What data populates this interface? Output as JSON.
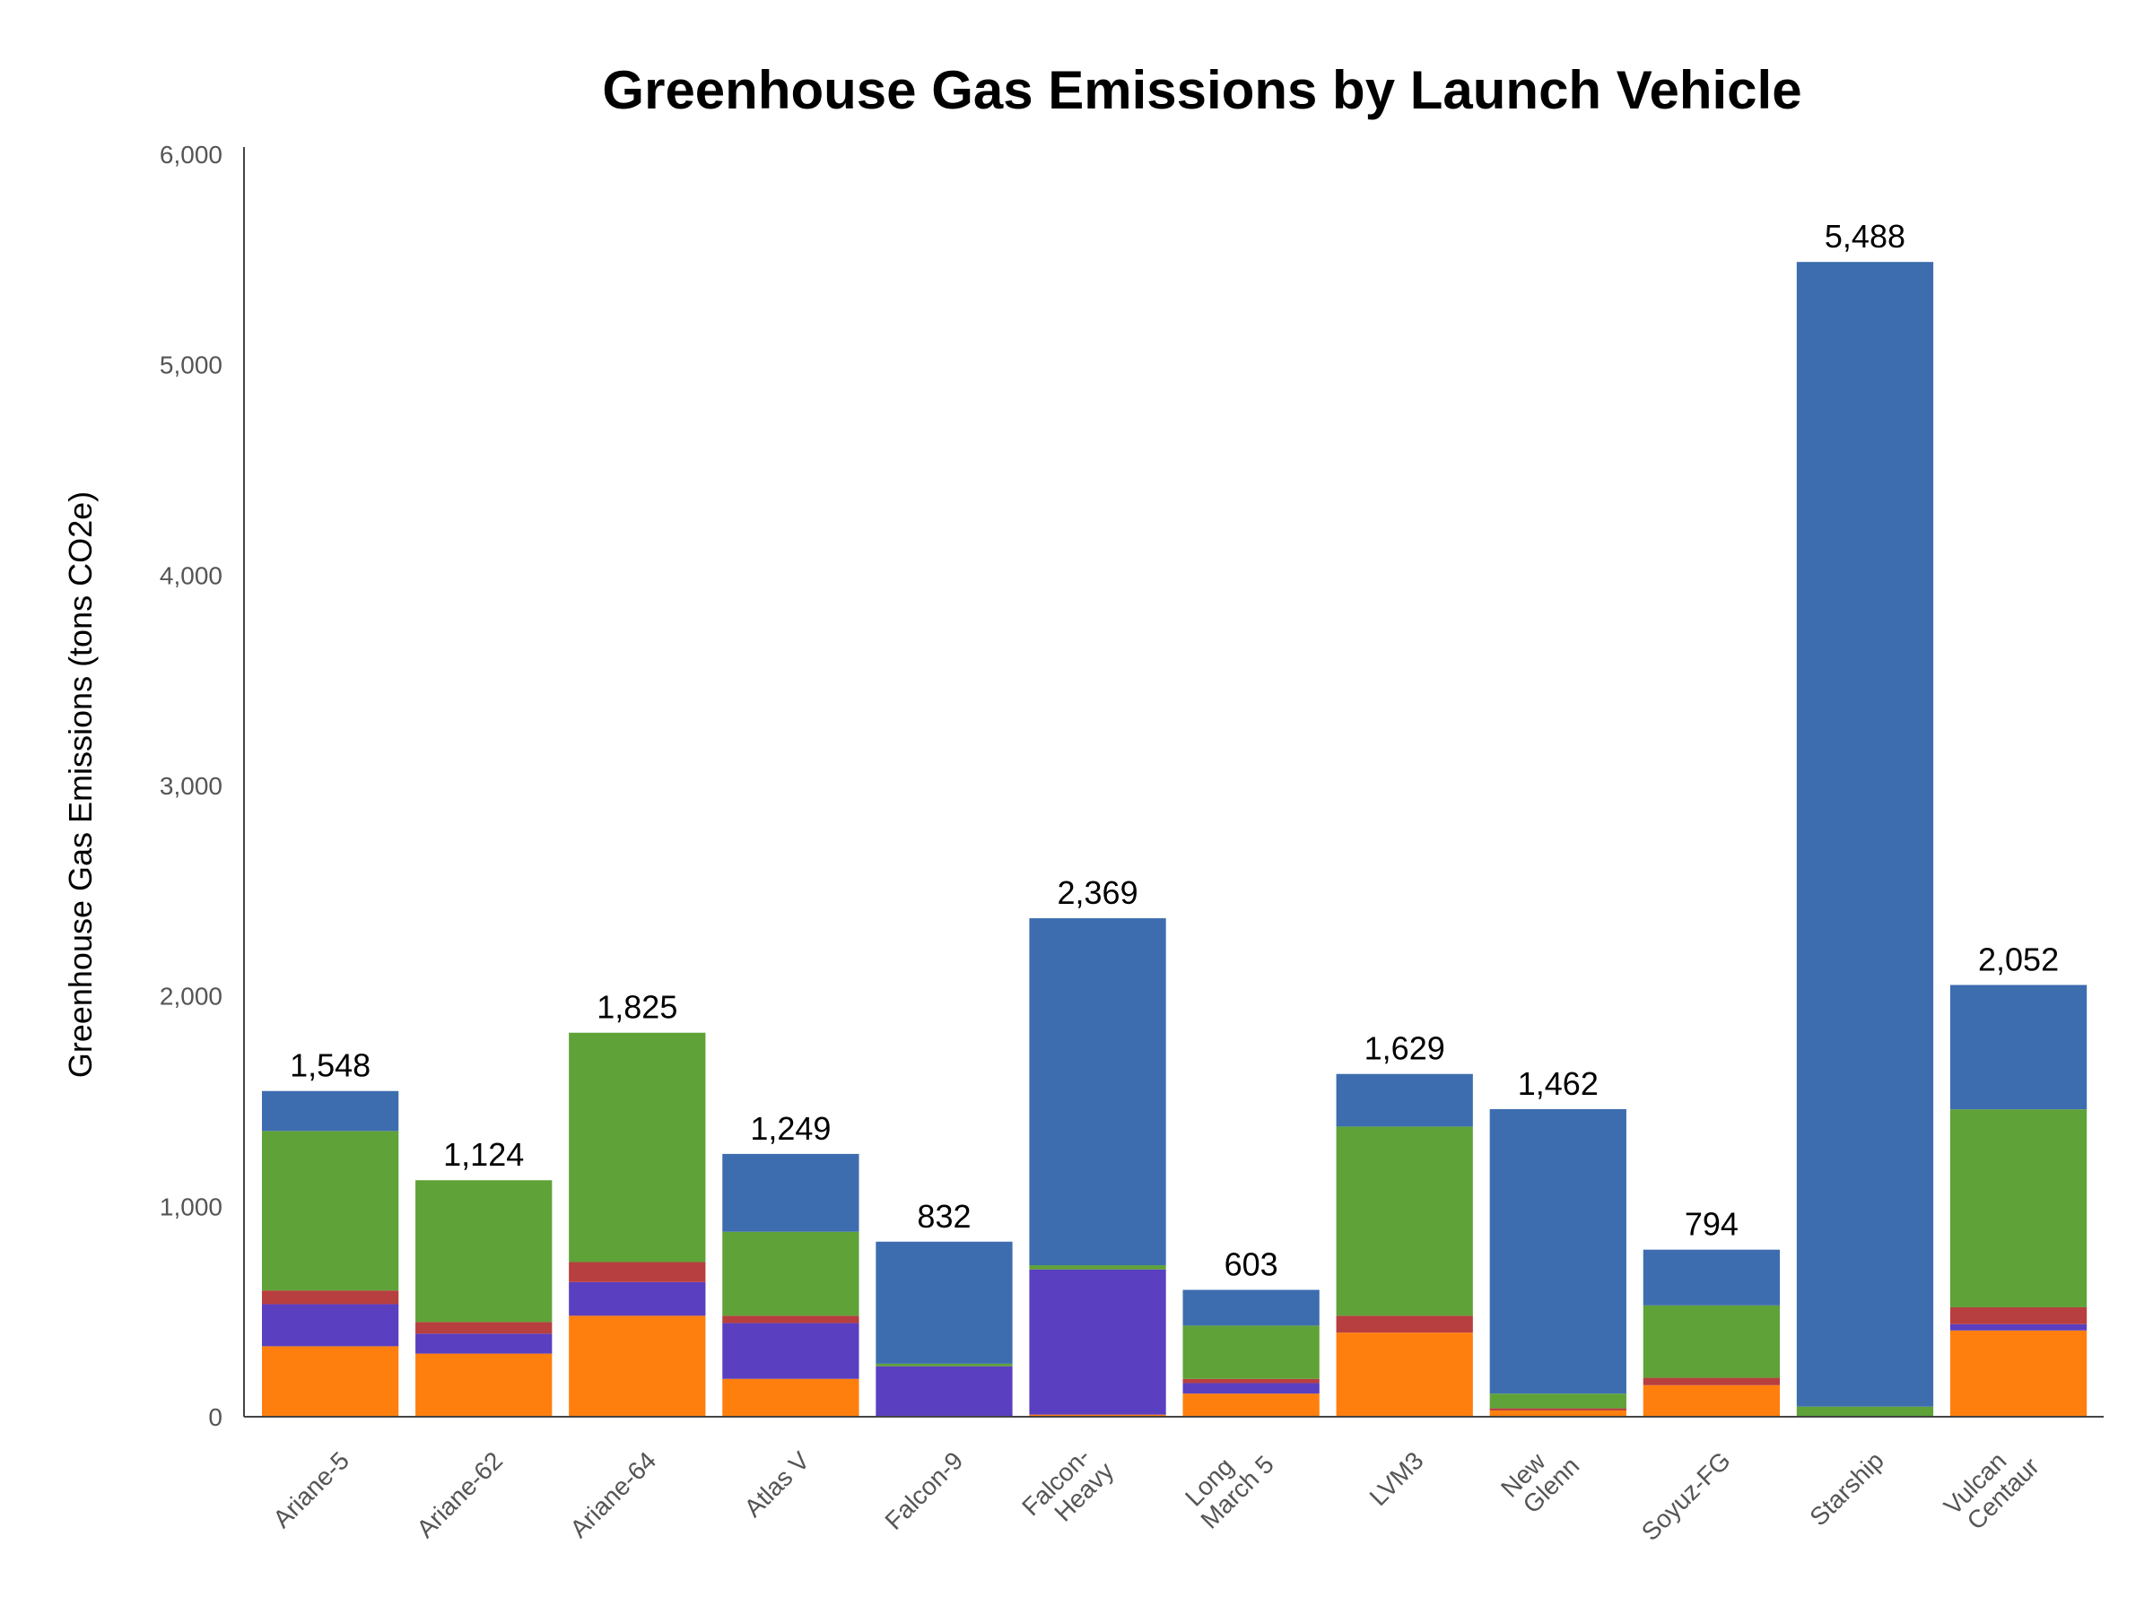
{
  "chart_data": {
    "type": "bar",
    "stacked": true,
    "title": "Greenhouse Gas Emissions by Launch Vehicle",
    "xlabel": "",
    "ylabel": "Greenhouse Gas Emissions (tons CO2e)",
    "ylim": [
      0,
      6000
    ],
    "yticks": [
      "0",
      "1,000",
      "2,000",
      "3,000",
      "4,000",
      "5,000",
      "6,000"
    ],
    "grid": false,
    "legend": "none",
    "categories": [
      [
        "Ariane-5"
      ],
      [
        "Ariane-62"
      ],
      [
        "Ariane-64"
      ],
      [
        "Atlas V"
      ],
      [
        "Falcon-9"
      ],
      [
        "Falcon-",
        "Heavy"
      ],
      [
        "Long",
        "March 5"
      ],
      [
        "LVM3"
      ],
      [
        "New",
        "Glenn"
      ],
      [
        "Soyuz-FG"
      ],
      [
        "Starship"
      ],
      [
        "Vulcan",
        "Centaur"
      ]
    ],
    "totals": [
      "1,548",
      "1,124",
      "1,825",
      "1,249",
      "832",
      "2,369",
      "603",
      "1,629",
      "1,462",
      "794",
      "5,488",
      "2,052"
    ],
    "series": [
      {
        "color": "#ff7f0e",
        "values": [
          335,
          300,
          480,
          180,
          0,
          10,
          110,
          400,
          30,
          150,
          0,
          410
        ]
      },
      {
        "color": "#5a3fc0",
        "values": [
          200,
          95,
          160,
          265,
          240,
          690,
          50,
          0,
          0,
          0,
          0,
          30
        ]
      },
      {
        "color": "#b73f3f",
        "values": [
          65,
          55,
          95,
          35,
          0,
          0,
          20,
          80,
          10,
          35,
          0,
          80
        ]
      },
      {
        "color": "#5fa238",
        "values": [
          758,
          674,
          1090,
          399,
          12,
          20,
          253,
          899,
          70,
          344,
          48,
          941
        ]
      },
      {
        "color": "#3d6daf",
        "values": [
          190,
          0,
          0,
          370,
          580,
          1649,
          170,
          250,
          1352,
          265,
          5440,
          591
        ]
      }
    ]
  }
}
